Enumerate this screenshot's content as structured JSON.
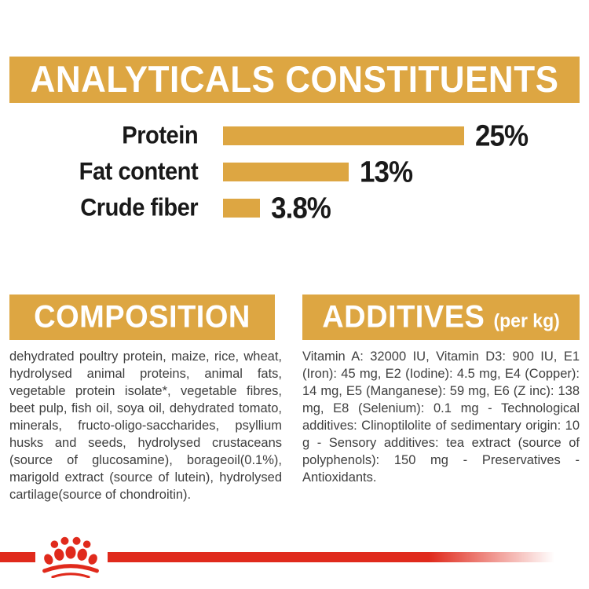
{
  "colors": {
    "gold": "#DDA642",
    "red": "#E02A1C",
    "ink": "#191919",
    "body_text": "#3E3E3E"
  },
  "analyticals": {
    "title": "ANALYTICALS CONSTITUENTS"
  },
  "chart_data": {
    "type": "bar",
    "title": "ANALYTICALS CONSTITUENTS",
    "categories": [
      "Protein",
      "Fat content",
      "Crude fiber"
    ],
    "values": [
      25,
      13,
      3.8
    ],
    "value_labels": [
      "25%",
      "13%",
      "3.8%"
    ],
    "unit": "%",
    "xlim": [
      0,
      25
    ],
    "orientation": "horizontal",
    "grid": false,
    "bar_color": "#DDA642"
  },
  "composition": {
    "title": "COMPOSITION",
    "body": "dehydrated poultry protein, maize, rice, wheat, hydrolysed animal proteins, animal fats, vegetable protein isolate*, vegetable fibres, beet pulp, fish oil, soya oil, dehydrated tomato, minerals, fructo-oligo-saccharides, psyllium husks and seeds, hydrolysed crustaceans (source of glucosamine), borageoil(0.1%), marigold extract (source of lutein), hydrolysed cartilage(source of chondroitin)."
  },
  "additives": {
    "title": "ADDITIVES",
    "unit": "(per kg)",
    "body": "Vitamin A: 32000 IU, Vitamin D3: 900 IU, E1 (Iron): 45 mg, E2 (Iodine): 4.5 mg, E4 (Copper): 14 mg, E5 (Manganese): 59 mg, E6 (Z inc): 138 mg, E8 (Selenium): 0.1 mg - Technological additives: Clinoptilolite of sedimentary origin: 10 g - Sensory additives: tea extract (source of polyphenols): 150 mg - Preservatives - Antioxidants."
  },
  "footer": {
    "logo": "royal-canin-crown"
  }
}
